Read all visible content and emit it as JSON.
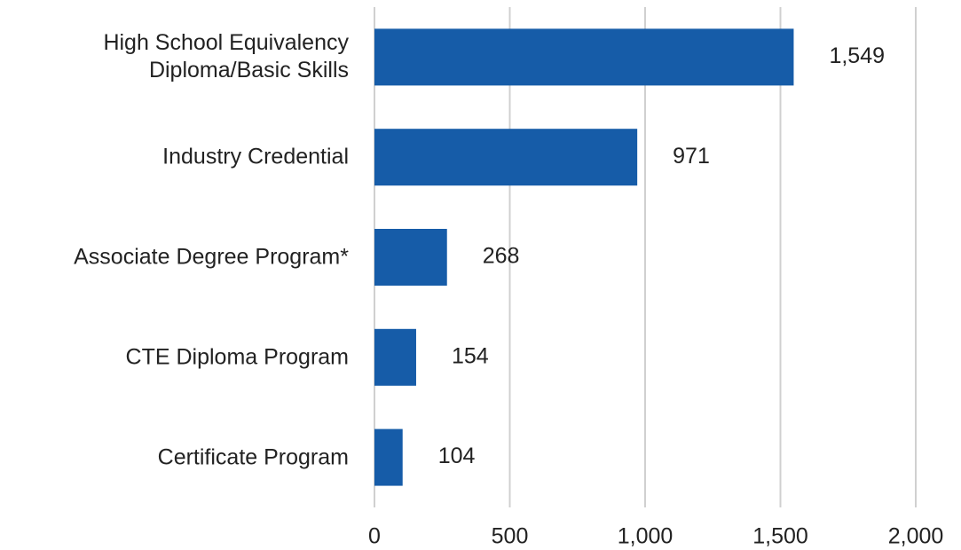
{
  "chart_data": {
    "type": "bar",
    "orientation": "horizontal",
    "categories": [
      "High School Equivalency Diploma/Basic Skills",
      "Industry Credential",
      "Associate Degree Program*",
      "CTE Diploma Program",
      "Certificate Program"
    ],
    "values": [
      1549,
      971,
      268,
      154,
      104
    ],
    "value_labels": [
      "1,549",
      "971",
      "268",
      "154",
      "104"
    ],
    "color": "#165ca8",
    "xlim": [
      0,
      2000
    ],
    "xticks": [
      0,
      500,
      {
        "value": 1000,
        "label": "1,000"
      },
      {
        "value": 1500,
        "label": "1,500"
      },
      {
        "value": 2000,
        "label": "2,000"
      }
    ],
    "grid": true
  }
}
